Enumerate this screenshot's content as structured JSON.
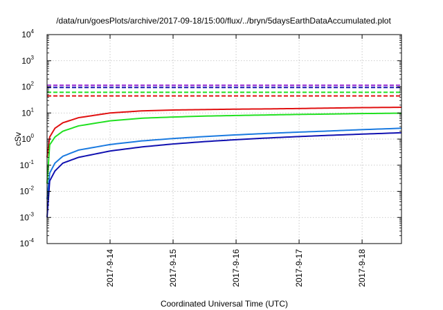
{
  "chart_data": {
    "type": "line",
    "title": "/data/run/goesPlots/archive/2017-09-18/15:00/flux/../bryn/5daysEarthDataAccumulated.plot",
    "xlabel": "Coordinated Universal Time (UTC)",
    "ylabel": "cSv",
    "x_scale": "time",
    "y_scale": "log",
    "xlim": [
      "2017-09-13 00:00",
      "2017-09-18 15:00"
    ],
    "ylim": [
      0.0001,
      10000
    ],
    "grid": true,
    "x_ticks": [
      {
        "value": "2017-09-14 00:00",
        "label": "2017-9-14"
      },
      {
        "value": "2017-09-15 00:00",
        "label": "2017-9-15"
      },
      {
        "value": "2017-09-16 00:00",
        "label": "2017-9-16"
      },
      {
        "value": "2017-09-17 00:00",
        "label": "2017-9-17"
      },
      {
        "value": "2017-09-18 00:00",
        "label": "2017-9-18"
      }
    ],
    "y_ticks": [
      {
        "value": 0.0001,
        "base": "10",
        "exp": "-4"
      },
      {
        "value": 0.001,
        "base": "10",
        "exp": "-3"
      },
      {
        "value": 0.01,
        "base": "10",
        "exp": "-2"
      },
      {
        "value": 0.1,
        "base": "10",
        "exp": "-1"
      },
      {
        "value": 1,
        "base": "10",
        "exp": "0"
      },
      {
        "value": 10,
        "base": "10",
        "exp": "1"
      },
      {
        "value": 100,
        "base": "10",
        "exp": "2"
      },
      {
        "value": 1000,
        "base": "10",
        "exp": "3"
      },
      {
        "value": 10000,
        "base": "10",
        "exp": "4"
      }
    ],
    "series": [
      {
        "color": "#e01010",
        "style": "solid",
        "x": [
          "2017-09-13 00:00",
          "2017-09-13 01:00",
          "2017-09-13 03:00",
          "2017-09-13 06:00",
          "2017-09-13 12:00",
          "2017-09-14 00:00",
          "2017-09-14 12:00",
          "2017-09-15 00:00",
          "2017-09-15 12:00",
          "2017-09-16 00:00",
          "2017-09-16 12:00",
          "2017-09-17 00:00",
          "2017-09-17 12:00",
          "2017-09-18 00:00",
          "2017-09-18 15:00"
        ],
        "y": [
          0.2,
          1.2,
          2.6,
          4.2,
          6.6,
          10.0,
          12.0,
          13.0,
          13.5,
          14.0,
          14.3,
          14.8,
          15.4,
          16.0,
          16.5
        ]
      },
      {
        "color": "#20e020",
        "style": "solid",
        "x": [
          "2017-09-13 00:00",
          "2017-09-13 01:00",
          "2017-09-13 03:00",
          "2017-09-13 06:00",
          "2017-09-13 12:00",
          "2017-09-14 00:00",
          "2017-09-14 12:00",
          "2017-09-15 00:00",
          "2017-09-15 12:00",
          "2017-09-16 00:00",
          "2017-09-16 12:00",
          "2017-09-17 00:00",
          "2017-09-17 12:00",
          "2017-09-18 00:00",
          "2017-09-18 15:00"
        ],
        "y": [
          0.02,
          0.6,
          1.2,
          2.0,
          3.2,
          5.0,
          6.3,
          7.0,
          7.6,
          8.0,
          8.4,
          8.8,
          9.1,
          9.5,
          9.8
        ]
      },
      {
        "color": "#1a7ae0",
        "style": "solid",
        "x": [
          "2017-09-13 00:00",
          "2017-09-13 01:00",
          "2017-09-13 03:00",
          "2017-09-13 06:00",
          "2017-09-13 12:00",
          "2017-09-14 00:00",
          "2017-09-14 12:00",
          "2017-09-15 00:00",
          "2017-09-15 12:00",
          "2017-09-16 00:00",
          "2017-09-16 12:00",
          "2017-09-17 00:00",
          "2017-09-17 12:00",
          "2017-09-18 00:00",
          "2017-09-18 15:00"
        ],
        "y": [
          0.005,
          0.05,
          0.12,
          0.22,
          0.38,
          0.62,
          0.85,
          1.05,
          1.25,
          1.45,
          1.65,
          1.85,
          2.05,
          2.3,
          2.6
        ]
      },
      {
        "color": "#1010b0",
        "style": "solid",
        "x": [
          "2017-09-13 00:00",
          "2017-09-13 01:00",
          "2017-09-13 03:00",
          "2017-09-13 06:00",
          "2017-09-13 12:00",
          "2017-09-14 00:00",
          "2017-09-14 12:00",
          "2017-09-15 00:00",
          "2017-09-15 12:00",
          "2017-09-16 00:00",
          "2017-09-16 12:00",
          "2017-09-17 00:00",
          "2017-09-17 12:00",
          "2017-09-18 00:00",
          "2017-09-18 15:00"
        ],
        "y": [
          0.001,
          0.025,
          0.06,
          0.12,
          0.2,
          0.35,
          0.5,
          0.65,
          0.8,
          0.95,
          1.1,
          1.25,
          1.4,
          1.55,
          1.75
        ]
      },
      {
        "color": "#9020d0",
        "style": "dashed",
        "x": [
          "2017-09-13 00:00",
          "2017-09-18 15:00"
        ],
        "y": [
          115,
          115
        ]
      },
      {
        "color": "#1010b0",
        "style": "dashed",
        "x": [
          "2017-09-13 00:00",
          "2017-09-18 15:00"
        ],
        "y": [
          95,
          95
        ]
      },
      {
        "color": "#20e020",
        "style": "dashed",
        "x": [
          "2017-09-13 00:00",
          "2017-09-18 15:00"
        ],
        "y": [
          62,
          62
        ]
      },
      {
        "color": "#e01010",
        "style": "dashed",
        "x": [
          "2017-09-13 00:00",
          "2017-09-18 15:00"
        ],
        "y": [
          45,
          45
        ]
      }
    ]
  }
}
